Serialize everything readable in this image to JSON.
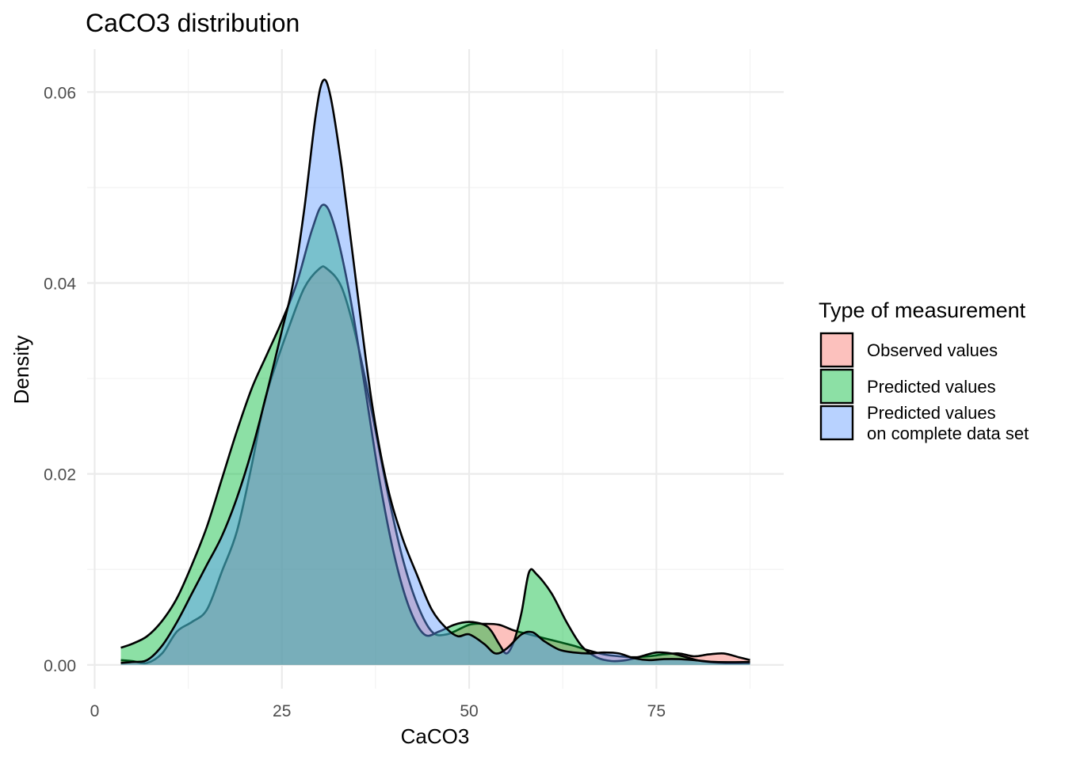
{
  "chart_data": {
    "type": "area",
    "title": "CaCO3 distribution",
    "xlabel": "CaCO3",
    "ylabel": "Density",
    "xlim": [
      -1,
      92
    ],
    "ylim": [
      -0.0025,
      0.0645
    ],
    "x_ticks": [
      0,
      25,
      50,
      75
    ],
    "x_tick_labels": [
      "0",
      "25",
      "50",
      "75"
    ],
    "y_ticks": [
      0.0,
      0.02,
      0.04,
      0.06
    ],
    "y_tick_labels": [
      "0.00",
      "0.02",
      "0.04",
      "0.06"
    ],
    "grid": true,
    "legend": {
      "title": "Type of measurement",
      "position": "right"
    },
    "series": [
      {
        "name": "Observed values",
        "name_lines": [
          "Observed values"
        ],
        "color": "#F8766D",
        "points": [
          [
            3.5,
            0.0005
          ],
          [
            5,
            0.0004
          ],
          [
            7,
            0.0002
          ],
          [
            9,
            0.0012
          ],
          [
            11,
            0.0035
          ],
          [
            13,
            0.0045
          ],
          [
            15,
            0.0058
          ],
          [
            17,
            0.0098
          ],
          [
            19,
            0.014
          ],
          [
            21,
            0.021
          ],
          [
            22.5,
            0.027
          ],
          [
            24,
            0.031
          ],
          [
            26,
            0.0355
          ],
          [
            28,
            0.0395
          ],
          [
            30,
            0.0415
          ],
          [
            31,
            0.0415
          ],
          [
            33,
            0.0395
          ],
          [
            35,
            0.034
          ],
          [
            37,
            0.0265
          ],
          [
            39,
            0.0185
          ],
          [
            41,
            0.0115
          ],
          [
            43,
            0.0065
          ],
          [
            45,
            0.0035
          ],
          [
            47,
            0.0032
          ],
          [
            50,
            0.0042
          ],
          [
            52,
            0.0043
          ],
          [
            54,
            0.0042
          ],
          [
            56,
            0.0036
          ],
          [
            58,
            0.0032
          ],
          [
            60,
            0.0028
          ],
          [
            62,
            0.0024
          ],
          [
            64,
            0.002
          ],
          [
            66,
            0.0015
          ],
          [
            68,
            0.0011
          ],
          [
            70,
            0.0009
          ],
          [
            72,
            0.0008
          ],
          [
            74,
            0.0009
          ],
          [
            76,
            0.0011
          ],
          [
            78,
            0.0012
          ],
          [
            80,
            0.0009
          ],
          [
            82,
            0.0011
          ],
          [
            84,
            0.0012
          ],
          [
            86,
            0.0008
          ],
          [
            87.5,
            0.0005
          ]
        ]
      },
      {
        "name": "Predicted values",
        "name_lines": [
          "Predicted values"
        ],
        "color": "#00BA38",
        "points": [
          [
            3.5,
            0.0018
          ],
          [
            5,
            0.0022
          ],
          [
            7,
            0.003
          ],
          [
            9,
            0.0046
          ],
          [
            11,
            0.007
          ],
          [
            13,
            0.0105
          ],
          [
            15,
            0.0145
          ],
          [
            17,
            0.0195
          ],
          [
            19,
            0.0245
          ],
          [
            21,
            0.029
          ],
          [
            23,
            0.0325
          ],
          [
            25,
            0.036
          ],
          [
            27,
            0.04
          ],
          [
            29,
            0.0455
          ],
          [
            30.5,
            0.0482
          ],
          [
            32,
            0.046
          ],
          [
            34,
            0.039
          ],
          [
            36,
            0.0295
          ],
          [
            38,
            0.0195
          ],
          [
            40,
            0.0115
          ],
          [
            42,
            0.006
          ],
          [
            44,
            0.0032
          ],
          [
            46,
            0.0035
          ],
          [
            48,
            0.0042
          ],
          [
            50,
            0.0045
          ],
          [
            52,
            0.0042
          ],
          [
            53,
            0.0035
          ],
          [
            54,
            0.0022
          ],
          [
            55,
            0.0012
          ],
          [
            56,
            0.0025
          ],
          [
            57,
            0.0055
          ],
          [
            58,
            0.0097
          ],
          [
            59,
            0.0095
          ],
          [
            61,
            0.0075
          ],
          [
            63,
            0.0045
          ],
          [
            65,
            0.002
          ],
          [
            67,
            0.0008
          ],
          [
            69,
            0.0004
          ],
          [
            71,
            0.0005
          ],
          [
            73,
            0.0009
          ],
          [
            75,
            0.0013
          ],
          [
            77,
            0.0012
          ],
          [
            79,
            0.0008
          ],
          [
            81,
            0.0004
          ],
          [
            84,
            0.0002
          ],
          [
            87.5,
            0.0002
          ]
        ]
      },
      {
        "name": "Predicted values on complete data set",
        "name_lines": [
          "Predicted values",
          "on complete data set"
        ],
        "color": "#619CFF",
        "points": [
          [
            3.5,
            0.0002
          ],
          [
            5,
            0.0003
          ],
          [
            7,
            0.0005
          ],
          [
            9,
            0.002
          ],
          [
            11,
            0.0045
          ],
          [
            13,
            0.0075
          ],
          [
            15,
            0.0105
          ],
          [
            17,
            0.0135
          ],
          [
            19,
            0.0175
          ],
          [
            21,
            0.0225
          ],
          [
            23,
            0.0285
          ],
          [
            25,
            0.035
          ],
          [
            26.5,
            0.04
          ],
          [
            28,
            0.0478
          ],
          [
            29.5,
            0.0575
          ],
          [
            30.5,
            0.0612
          ],
          [
            31.5,
            0.0595
          ],
          [
            33,
            0.052
          ],
          [
            35,
            0.0395
          ],
          [
            37,
            0.0275
          ],
          [
            39,
            0.019
          ],
          [
            41,
            0.0135
          ],
          [
            43,
            0.0095
          ],
          [
            45,
            0.0058
          ],
          [
            47,
            0.0038
          ],
          [
            48.5,
            0.003
          ],
          [
            50,
            0.0032
          ],
          [
            52,
            0.0022
          ],
          [
            53.5,
            0.0012
          ],
          [
            55,
            0.0017
          ],
          [
            57,
            0.0032
          ],
          [
            58.5,
            0.0034
          ],
          [
            60,
            0.0025
          ],
          [
            62,
            0.0016
          ],
          [
            64,
            0.0013
          ],
          [
            66,
            0.0012
          ],
          [
            68,
            0.0013
          ],
          [
            70,
            0.0012
          ],
          [
            72,
            0.0007
          ],
          [
            74,
            0.0005
          ],
          [
            76,
            0.0006
          ],
          [
            78,
            0.0006
          ],
          [
            80,
            0.0005
          ],
          [
            83,
            0.0003
          ],
          [
            87.5,
            0.0003
          ]
        ]
      }
    ]
  }
}
